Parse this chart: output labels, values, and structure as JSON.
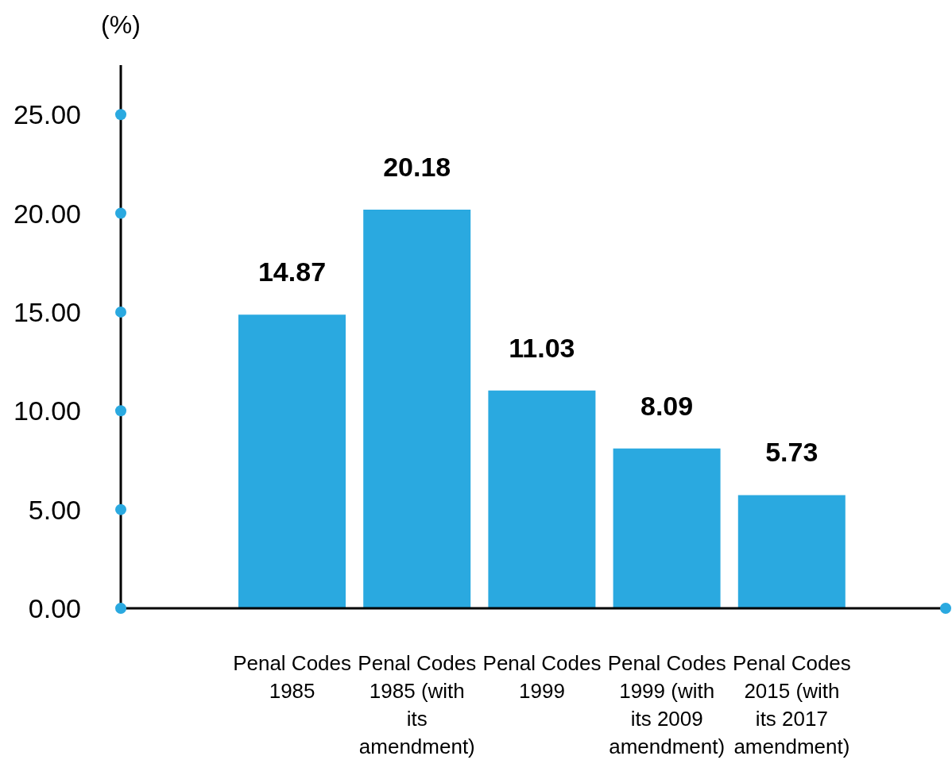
{
  "chart_data": {
    "type": "bar",
    "ylabel": "(%)",
    "categories": [
      "Penal Codes 1985",
      "Penal Codes 1985 (with its amendment)",
      "Penal Codes 1999",
      "Penal Codes 1999 (with its 2009 amendment)",
      "Penal Codes 2015 (with its 2017 amendment)"
    ],
    "values": [
      14.87,
      20.18,
      11.03,
      8.09,
      5.73
    ],
    "color": "#2aa9e0",
    "ylim": [
      0,
      27.5
    ],
    "yticks": [
      {
        "value": 0,
        "label": "0.00"
      },
      {
        "value": 5,
        "label": "5.00"
      },
      {
        "value": 10,
        "label": "10.00"
      },
      {
        "value": 15,
        "label": "15.00"
      },
      {
        "value": 20,
        "label": "20.00"
      },
      {
        "value": 25,
        "label": "25.00"
      }
    ],
    "data_labels": true,
    "grid": false,
    "legend": false
  }
}
